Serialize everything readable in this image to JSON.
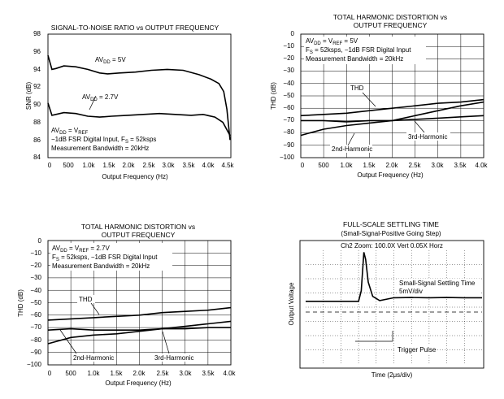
{
  "chart_data": [
    {
      "type": "line",
      "title": "SIGNAL-TO-NOISE RATIO vs OUTPUT FREQUENCY",
      "xlabel": "Output Frequency (Hz)",
      "ylabel": "SNR (dB)",
      "xlim": [
        0,
        4600
      ],
      "ylim": [
        84,
        98
      ],
      "x_ticks": [
        "0",
        "500",
        "1.0k",
        "1.5k",
        "2.0k",
        "2.5k",
        "3.0k",
        "3.5k",
        "4.0k",
        "4.5k"
      ],
      "y_ticks": [
        "84",
        "86",
        "88",
        "90",
        "92",
        "94",
        "96",
        "98"
      ],
      "grid": false,
      "series": [
        {
          "name": "AVDD = 5V",
          "label": "AV",
          "label_sub": "DD",
          "label_tail": " = 5V",
          "x": [
            0,
            100,
            200,
            400,
            700,
            1000,
            1300,
            1500,
            1800,
            2200,
            2600,
            3000,
            3400,
            3800,
            4100,
            4300,
            4420,
            4500,
            4580
          ],
          "y": [
            95.6,
            94.0,
            94.1,
            94.4,
            94.3,
            94.0,
            93.6,
            93.5,
            93.6,
            93.7,
            93.9,
            94.0,
            93.9,
            93.4,
            92.9,
            92.4,
            91.5,
            89.5,
            86.0
          ]
        },
        {
          "name": "AVDD = 2.7V",
          "label": "AV",
          "label_sub": "DD",
          "label_tail": " = 2.7V",
          "x": [
            0,
            100,
            200,
            400,
            700,
            1000,
            1300,
            1600,
            2000,
            2400,
            2800,
            3200,
            3600,
            3900,
            4200,
            4400,
            4580
          ],
          "y": [
            90.2,
            88.8,
            88.9,
            89.1,
            89.0,
            88.7,
            88.6,
            88.7,
            88.8,
            88.9,
            89.0,
            88.9,
            88.8,
            88.9,
            88.6,
            88.0,
            86.5
          ]
        }
      ],
      "conditions": [
        {
          "text": "AV",
          "sub": "DD",
          "tail": " = V",
          "sub2": "REF",
          "end": ""
        },
        {
          "text": "−1dB FSR Digital Input, F",
          "sub": "S",
          "tail": " = 52ksps",
          "sub2": "",
          "end": ""
        },
        {
          "text": "Measurement Bandwidth = 20kHz",
          "sub": "",
          "tail": "",
          "sub2": "",
          "end": ""
        }
      ]
    },
    {
      "type": "line",
      "title": "TOTAL HARMONIC DISTORTION vs",
      "subtitle": "OUTPUT FREQUENCY",
      "xlabel": "Output Frequency (Hz)",
      "ylabel": "THD (dB)",
      "xlim": [
        0,
        4000
      ],
      "ylim": [
        -100,
        0
      ],
      "x_ticks": [
        "0",
        "500",
        "1.0k",
        "1.5k",
        "2.0k",
        "2.5k",
        "3.0k",
        "3.5k",
        "4.0k"
      ],
      "y_ticks": [
        "0",
        "−10",
        "−20",
        "−30",
        "−40",
        "−50",
        "−60",
        "−70",
        "−80",
        "−90",
        "−100"
      ],
      "grid": true,
      "series": [
        {
          "name": "THD",
          "x": [
            0,
            500,
            1000,
            1500,
            2000,
            2500,
            3000,
            3500,
            4000
          ],
          "y": [
            -66,
            -65,
            -64,
            -62,
            -60,
            -58,
            -56,
            -55,
            -53
          ]
        },
        {
          "name": "2nd-Harmonic",
          "x": [
            0,
            500,
            1000,
            1500,
            2000,
            2500,
            3000,
            3500,
            4000
          ],
          "y": [
            -82,
            -77,
            -74,
            -72,
            -70,
            -66,
            -62,
            -58,
            -55
          ]
        },
        {
          "name": "3rd-Harmonic",
          "x": [
            0,
            500,
            1000,
            1500,
            2000,
            2500,
            3000,
            3500,
            4000
          ],
          "y": [
            -70,
            -70,
            -71,
            -70,
            -70,
            -69,
            -68,
            -67,
            -66
          ]
        }
      ],
      "annotations": [
        "THD",
        "2nd-Harmonic",
        "3rd-Harmonic"
      ],
      "conditions": [
        {
          "text": "AV",
          "sub": "DD",
          "tail": " = V",
          "sub2": "REF",
          "end": " = 5V"
        },
        {
          "text": "F",
          "sub": "S",
          "tail": " = 52ksps, −1dB FSR Digital Input",
          "sub2": "",
          "end": ""
        },
        {
          "text": "Measurement Bandwidth = 20kHz",
          "sub": "",
          "tail": "",
          "sub2": "",
          "end": ""
        }
      ]
    },
    {
      "type": "line",
      "title": "TOTAL HARMONIC DISTORTION vs",
      "subtitle": "OUTPUT FREQUENCY",
      "xlabel": "Output Frequency (Hz)",
      "ylabel": "THD (dB)",
      "xlim": [
        0,
        4000
      ],
      "ylim": [
        -100,
        0
      ],
      "x_ticks": [
        "0",
        "500",
        "1.0k",
        "1.5k",
        "2.0k",
        "2.5k",
        "3.0k",
        "3.5k",
        "4.0k"
      ],
      "y_ticks": [
        "0",
        "−10",
        "−20",
        "−30",
        "−40",
        "−50",
        "−60",
        "−70",
        "−80",
        "−90",
        "−100"
      ],
      "grid": true,
      "series": [
        {
          "name": "THD",
          "x": [
            0,
            500,
            1000,
            1500,
            2000,
            2500,
            3000,
            3500,
            4000
          ],
          "y": [
            -64,
            -63,
            -62,
            -61,
            -60,
            -58,
            -57,
            -56,
            -54
          ]
        },
        {
          "name": "2nd-Harmonic",
          "x": [
            0,
            500,
            1000,
            1500,
            2000,
            2500,
            3000,
            3500,
            4000
          ],
          "y": [
            -83,
            -78,
            -76,
            -75,
            -73,
            -71,
            -69,
            -67,
            -65
          ]
        },
        {
          "name": "3rd-Harmonic",
          "x": [
            0,
            500,
            1000,
            1500,
            2000,
            2500,
            3000,
            3500,
            4000
          ],
          "y": [
            -72,
            -71,
            -72,
            -72,
            -72,
            -71,
            -71,
            -70,
            -70
          ]
        }
      ],
      "annotations": [
        "THD",
        "2nd-Harmonic",
        "3rd-Harmonic"
      ],
      "conditions": [
        {
          "text": "AV",
          "sub": "DD",
          "tail": " = V",
          "sub2": "REF",
          "end": " = 2.7V"
        },
        {
          "text": "F",
          "sub": "S",
          "tail": " = 52ksps, −1dB FSR Digital Input",
          "sub2": "",
          "end": ""
        },
        {
          "text": "Measurement Bandwidth = 20kHz",
          "sub": "",
          "tail": "",
          "sub2": "",
          "end": ""
        }
      ]
    },
    {
      "type": "line",
      "title": "FULL-SCALE SETTLING TIME",
      "subtitle": "(Small-Signal-Positive Going Step)",
      "xlabel": "Time (2μs/div)",
      "ylabel": "Output Voltage",
      "grid": true,
      "header": "Ch2 Zoom: 100.0X Vert   0.05X Horz",
      "divisions": {
        "x": 10,
        "y": 8
      },
      "series": [
        {
          "name": "Small-Signal Settling Time",
          "x": [
            0,
            1.5,
            3.0,
            3.15,
            3.3,
            3.4,
            3.55,
            3.8,
            4.2,
            5,
            6,
            7,
            8,
            9,
            10
          ],
          "y": [
            -0.15,
            -0.15,
            -0.15,
            0.6,
            3.3,
            2.8,
            1.2,
            0.2,
            -0.1,
            0.1,
            0.12,
            0.1,
            0.12,
            0.1,
            0.1
          ]
        }
      ],
      "annotations": [
        "Small-Signal Settling Time",
        "5mV/div",
        "Trigger Pulse"
      ]
    }
  ]
}
